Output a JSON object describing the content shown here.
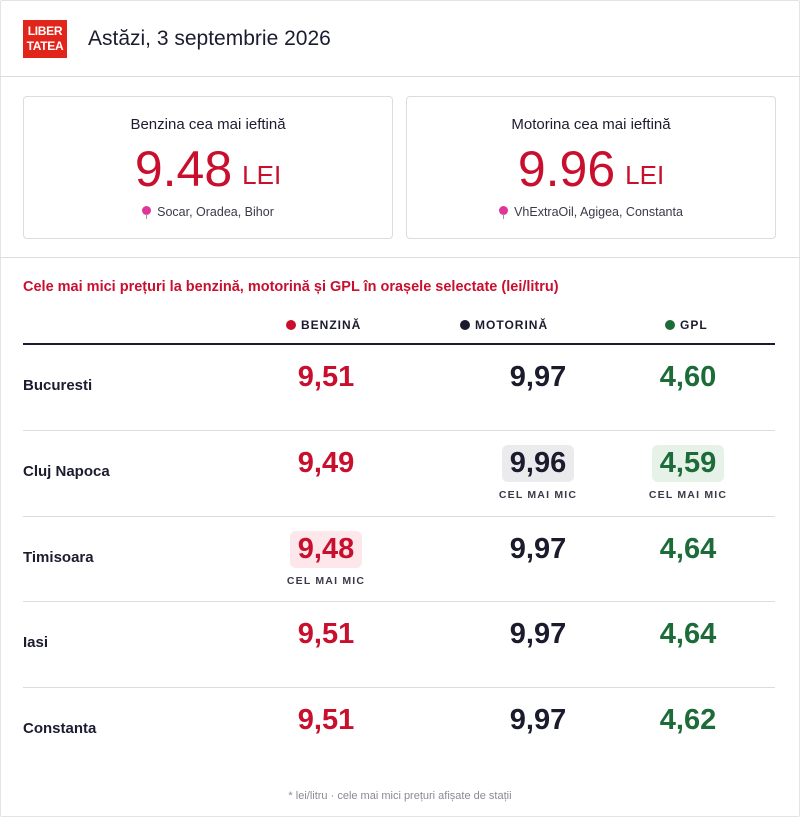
{
  "header": {
    "logo_line1": "LIBER",
    "logo_line2": "TATEA",
    "date_title": "Astăzi, 3 septembrie 2026"
  },
  "cards": [
    {
      "label": "Benzina cea mai ieftină",
      "price": "9.48",
      "unit": "LEI",
      "location": "Socar, Oradea, Bihor"
    },
    {
      "label": "Motorina cea mai ieftină",
      "price": "9.96",
      "unit": "LEI",
      "location": "VhExtraOil, Agigea, Constanta"
    }
  ],
  "section_title": "Cele mai mici prețuri la benzină, motorină și GPL în orașele selectate (lei/litru)",
  "columns": {
    "benzina": {
      "label": "BENZINĂ",
      "color": "#c8102e"
    },
    "motorina": {
      "label": "MOTORINĂ",
      "color": "#1b1b2e"
    },
    "gpl": {
      "label": "GPL",
      "color": "#1e6b3a"
    }
  },
  "lowest_label": "CEL MAI MIC",
  "rows": [
    {
      "city": "Bucuresti",
      "benzina": "9,51",
      "motorina": "9,97",
      "gpl": "4,60"
    },
    {
      "city": "Cluj Napoca",
      "benzina": "9,49",
      "motorina": "9,96",
      "gpl": "4,59"
    },
    {
      "city": "Timisoara",
      "benzina": "9,48",
      "motorina": "9,97",
      "gpl": "4,64"
    },
    {
      "city": "Iasi",
      "benzina": "9,51",
      "motorina": "9,97",
      "gpl": "4,64"
    },
    {
      "city": "Constanta",
      "benzina": "9,51",
      "motorina": "9,97",
      "gpl": "4,62"
    }
  ],
  "footnote": "* lei/litru · cele mai mici prețuri afișate de stații"
}
